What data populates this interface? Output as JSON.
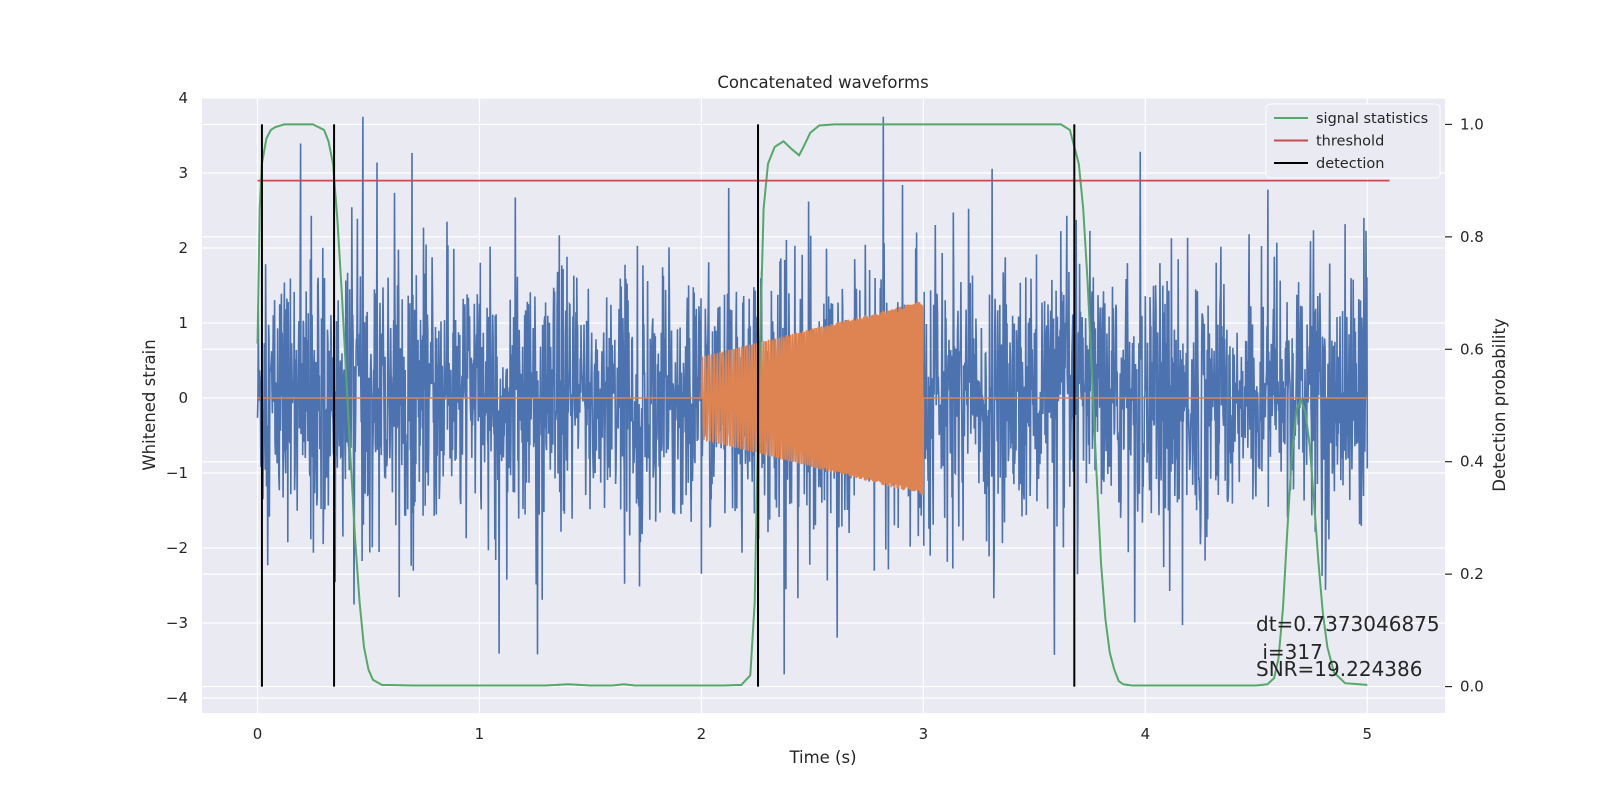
{
  "chart_data": {
    "type": "line",
    "title": "Concatenated waveforms",
    "xlabel": "Time (s)",
    "ylabel": "Whitened strain",
    "y2label": "Detection probability",
    "xlim": [
      -0.25,
      5.35
    ],
    "ylim": [
      -4.2,
      4.0
    ],
    "y2lim": [
      -0.047,
      1.047
    ],
    "xticks": [
      0,
      1,
      2,
      3,
      4,
      5
    ],
    "yticks": [
      -4,
      -3,
      -2,
      -1,
      0,
      1,
      2,
      3,
      4
    ],
    "y2ticks": [
      0.0,
      0.2,
      0.4,
      0.6,
      0.8,
      1.0
    ],
    "xtick_labels": [
      "0",
      "1",
      "2",
      "3",
      "4",
      "5"
    ],
    "ytick_labels": [
      "−4",
      "−3",
      "−2",
      "−1",
      "0",
      "1",
      "2",
      "3",
      "4"
    ],
    "y2tick_labels": [
      "0.0",
      "0.2",
      "0.4",
      "0.6",
      "0.8",
      "1.0"
    ],
    "grid": true,
    "legend_position": "top-right",
    "background": "#eaeaf2",
    "colors": {
      "noise": "#4c72b0",
      "injected_waveform": "#dd8452",
      "signal_statistics": "#55a868",
      "threshold": "#c44e52",
      "detection": "#000000"
    },
    "legend": [
      "signal statistics",
      "threshold",
      "detection"
    ],
    "noise_strain": {
      "x_range": [
        0,
        5
      ],
      "band": [
        -0.85,
        0.85
      ],
      "typical_peaks": [
        -2.7,
        3.6
      ]
    },
    "injected_waveform": {
      "x_range": [
        2.0,
        3.0
      ],
      "amplitude_start": 0.55,
      "amplitude_end": 1.3
    },
    "signal_statistics": {
      "axis": "right",
      "x": [
        0.0,
        0.01,
        0.02,
        0.04,
        0.06,
        0.08,
        0.12,
        0.25,
        0.3,
        0.32,
        0.34,
        0.36,
        0.38,
        0.4,
        0.42,
        0.44,
        0.46,
        0.48,
        0.5,
        0.52,
        0.56,
        0.7,
        1.0,
        1.3,
        1.4,
        1.5,
        1.6,
        1.65,
        1.7,
        1.9,
        2.1,
        2.18,
        2.22,
        2.24,
        2.26,
        2.28,
        2.3,
        2.33,
        2.37,
        2.41,
        2.44,
        2.46,
        2.49,
        2.53,
        2.6,
        3.0,
        3.5,
        3.62,
        3.66,
        3.7,
        3.72,
        3.74,
        3.76,
        3.78,
        3.8,
        3.82,
        3.84,
        3.86,
        3.88,
        3.9,
        3.94,
        4.2,
        4.5,
        4.55,
        4.58,
        4.6,
        4.62,
        4.64,
        4.66,
        4.68,
        4.7,
        4.72,
        4.74,
        4.76,
        4.78,
        4.8,
        4.82,
        4.85,
        4.9,
        5.0
      ],
      "y": [
        0.61,
        0.85,
        0.93,
        0.975,
        0.99,
        0.995,
        1.0,
        1.0,
        0.99,
        0.97,
        0.93,
        0.83,
        0.7,
        0.55,
        0.4,
        0.26,
        0.15,
        0.07,
        0.03,
        0.012,
        0.003,
        0.002,
        0.002,
        0.002,
        0.004,
        0.002,
        0.002,
        0.004,
        0.002,
        0.002,
        0.002,
        0.003,
        0.02,
        0.15,
        0.55,
        0.85,
        0.93,
        0.96,
        0.97,
        0.955,
        0.945,
        0.96,
        0.985,
        0.998,
        1.0,
        1.0,
        1.0,
        1.0,
        0.99,
        0.93,
        0.85,
        0.72,
        0.55,
        0.38,
        0.22,
        0.12,
        0.06,
        0.03,
        0.01,
        0.004,
        0.002,
        0.002,
        0.002,
        0.004,
        0.015,
        0.05,
        0.14,
        0.28,
        0.41,
        0.49,
        0.51,
        0.49,
        0.43,
        0.33,
        0.22,
        0.13,
        0.07,
        0.025,
        0.006,
        0.003
      ]
    },
    "threshold": {
      "axis": "right",
      "value": 0.9,
      "x_range": [
        0.0,
        5.1
      ]
    },
    "detections": [
      0.02,
      0.345,
      2.255,
      3.68
    ],
    "annotations": [
      "dt=0.7373046875",
      " i=317",
      "SNR=19.224386"
    ]
  }
}
